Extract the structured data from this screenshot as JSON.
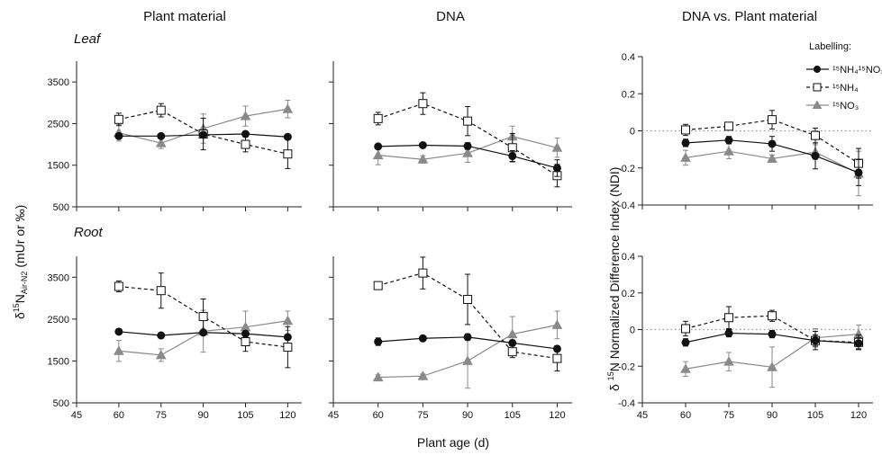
{
  "column_titles": [
    "Plant material",
    "DNA",
    "DNA vs. Plant material"
  ],
  "row_labels": [
    "Leaf",
    "Root"
  ],
  "ylabel_left": {
    "main": "δ",
    "sup": "15",
    "n": "N",
    "sub": "Air-N2",
    "rest": " (mUr or ‰)"
  },
  "ylabel_right": {
    "main": "δ ",
    "sup": "15",
    "rest": "N Normalized Difference Index (NDI)"
  },
  "xlabel": "Plant age (d)",
  "legend": {
    "title": "Labelling:",
    "entries": [
      "¹⁵NH₄¹⁵NO₃",
      "¹⁵NH₄",
      "¹⁵NO₃"
    ]
  },
  "colors": {
    "nh4no3": "#111111",
    "nh4": "#111111",
    "no3": "#8a8a8a",
    "zero_line": "#999999"
  },
  "chart_data": [
    {
      "type": "line",
      "panel": "Plant material / Leaf",
      "x": [
        60,
        75,
        90,
        105,
        120
      ],
      "xlim": [
        45,
        125
      ],
      "xticks": [
        45,
        60,
        75,
        90,
        105,
        120
      ],
      "ylim": [
        500,
        4000
      ],
      "yticks": [
        500,
        1500,
        2500,
        3500
      ],
      "series": [
        {
          "name": "¹⁵NH₄¹⁵NO₃",
          "values": [
            2200,
            2200,
            2230,
            2250,
            2180
          ],
          "errors": [
            60,
            50,
            60,
            60,
            50
          ]
        },
        {
          "name": "¹⁵NH₄",
          "values": [
            2600,
            2820,
            2250,
            2000,
            1770
          ],
          "errors": [
            150,
            160,
            380,
            180,
            350
          ]
        },
        {
          "name": "¹⁵NO₃",
          "values": [
            2280,
            2030,
            2380,
            2680,
            2850
          ],
          "errors": [
            200,
            130,
            350,
            240,
            210
          ]
        }
      ]
    },
    {
      "type": "line",
      "panel": "DNA / Leaf",
      "x": [
        60,
        75,
        90,
        105,
        120
      ],
      "xlim": [
        45,
        125
      ],
      "xticks": [
        45,
        60,
        75,
        90,
        105,
        120
      ],
      "ylim": [
        500,
        4000
      ],
      "yticks": [
        500,
        1500,
        2500,
        3500
      ],
      "series": [
        {
          "name": "¹⁵NH₄¹⁵NO₃",
          "values": [
            1950,
            1980,
            1960,
            1720,
            1430
          ],
          "errors": [
            50,
            50,
            80,
            130,
            200
          ]
        },
        {
          "name": "¹⁵NH₄",
          "values": [
            2620,
            2980,
            2560,
            1920,
            1250
          ],
          "errors": [
            150,
            260,
            350,
            340,
            270
          ]
        },
        {
          "name": "¹⁵NO₃",
          "values": [
            1740,
            1640,
            1790,
            2190,
            1920
          ],
          "errors": [
            230,
            90,
            220,
            250,
            230
          ]
        }
      ]
    },
    {
      "type": "line",
      "panel": "DNA vs. Plant material / Leaf",
      "x": [
        60,
        75,
        90,
        105,
        120
      ],
      "xlim": [
        45,
        125
      ],
      "xticks": [
        45,
        60,
        75,
        90,
        105,
        120
      ],
      "ylim": [
        -0.4,
        0.4
      ],
      "yticks": [
        -0.4,
        -0.2,
        0,
        0.2,
        0.4
      ],
      "series": [
        {
          "name": "¹⁵NH₄¹⁵NO₃",
          "values": [
            -0.065,
            -0.05,
            -0.07,
            -0.135,
            -0.225
          ],
          "errors": [
            0.02,
            0.02,
            0.04,
            0.07,
            0.07
          ]
        },
        {
          "name": "¹⁵NH₄",
          "values": [
            0.005,
            0.025,
            0.06,
            -0.025,
            -0.175
          ],
          "errors": [
            0.03,
            0.02,
            0.05,
            0.04,
            0.08
          ]
        },
        {
          "name": "¹⁵NO₃",
          "values": [
            -0.145,
            -0.11,
            -0.15,
            -0.115,
            -0.23
          ],
          "errors": [
            0.04,
            0.04,
            0.02,
            0.04,
            0.12
          ]
        }
      ]
    },
    {
      "type": "line",
      "panel": "Plant material / Root",
      "x": [
        60,
        75,
        90,
        105,
        120
      ],
      "xlim": [
        45,
        125
      ],
      "xticks": [
        45,
        60,
        75,
        90,
        105,
        120
      ],
      "ylim": [
        500,
        4000
      ],
      "yticks": [
        500,
        1500,
        2500,
        3500
      ],
      "series": [
        {
          "name": "¹⁵NH₄¹⁵NO₃",
          "values": [
            2200,
            2110,
            2180,
            2150,
            2070
          ],
          "errors": [
            50,
            50,
            60,
            60,
            60
          ]
        },
        {
          "name": "¹⁵NH₄",
          "values": [
            3280,
            3180,
            2560,
            1960,
            1830
          ],
          "errors": [
            130,
            420,
            420,
            230,
            490
          ]
        },
        {
          "name": "¹⁵NO₃",
          "values": [
            1740,
            1640,
            2210,
            2310,
            2460
          ],
          "errors": [
            250,
            150,
            500,
            380,
            230
          ]
        }
      ]
    },
    {
      "type": "line",
      "panel": "DNA / Root",
      "x": [
        60,
        75,
        90,
        105,
        120
      ],
      "xlim": [
        45,
        125
      ],
      "xticks": [
        45,
        60,
        75,
        90,
        105,
        120
      ],
      "ylim": [
        500,
        4000
      ],
      "yticks": [
        500,
        1500,
        2500,
        3500
      ],
      "series": [
        {
          "name": "¹⁵NH₄¹⁵NO₃",
          "values": [
            1960,
            2040,
            2070,
            1930,
            1790
          ],
          "errors": [
            90,
            60,
            70,
            70,
            60
          ]
        },
        {
          "name": "¹⁵NH₄",
          "values": [
            3300,
            3600,
            2970,
            1720,
            1560
          ],
          "errors": [
            80,
            380,
            600,
            140,
            300
          ]
        },
        {
          "name": "¹⁵NO₃",
          "values": [
            1110,
            1140,
            1500,
            2140,
            2360
          ],
          "errors": [
            60,
            50,
            650,
            420,
            330
          ]
        }
      ]
    },
    {
      "type": "line",
      "panel": "DNA vs. Plant material / Root",
      "x": [
        60,
        75,
        90,
        105,
        120
      ],
      "xlim": [
        45,
        125
      ],
      "xticks": [
        45,
        60,
        75,
        90,
        105,
        120
      ],
      "ylim": [
        -0.4,
        0.4
      ],
      "yticks": [
        -0.4,
        -0.2,
        0,
        0.2,
        0.4
      ],
      "series": [
        {
          "name": "¹⁵NH₄¹⁵NO₃",
          "values": [
            -0.07,
            -0.02,
            -0.025,
            -0.06,
            -0.075
          ],
          "errors": [
            0.02,
            0.02,
            0.02,
            0.03,
            0.03
          ]
        },
        {
          "name": "¹⁵NH₄",
          "values": [
            0.005,
            0.065,
            0.075,
            -0.06,
            -0.07
          ],
          "errors": [
            0.04,
            0.06,
            0.03,
            0.05,
            0.04
          ]
        },
        {
          "name": "¹⁵NO₃",
          "values": [
            -0.215,
            -0.175,
            -0.205,
            -0.045,
            -0.025
          ],
          "errors": [
            0.04,
            0.05,
            0.11,
            0.05,
            0.05
          ]
        }
      ]
    }
  ]
}
